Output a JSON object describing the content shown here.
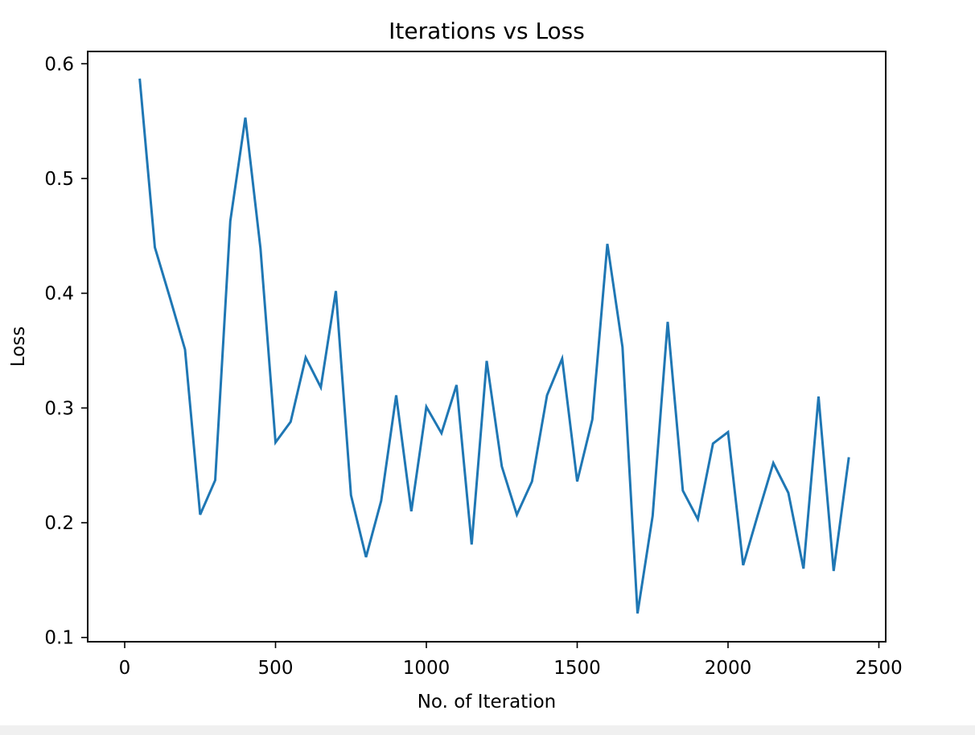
{
  "chart_data": {
    "type": "line",
    "title": "Iterations vs Loss",
    "xlabel": "No. of Iteration",
    "ylabel": "Loss",
    "xlim": [
      -120,
      2520
    ],
    "ylim": [
      0.097,
      0.61
    ],
    "xticks": [
      0,
      500,
      1000,
      1500,
      2000,
      2500
    ],
    "yticks": [
      0.1,
      0.2,
      0.3,
      0.4,
      0.5,
      0.6
    ],
    "xtick_labels": [
      "0",
      "500",
      "1000",
      "1500",
      "2000",
      "2500"
    ],
    "ytick_labels": [
      "0.1",
      "0.2",
      "0.3",
      "0.4",
      "0.5",
      "0.6"
    ],
    "grid": false,
    "series": [
      {
        "color": "#1f77b4",
        "x": [
          50,
          100,
          150,
          200,
          250,
          300,
          350,
          400,
          450,
          500,
          550,
          600,
          650,
          700,
          750,
          800,
          850,
          900,
          950,
          1000,
          1050,
          1100,
          1150,
          1200,
          1250,
          1300,
          1350,
          1400,
          1450,
          1500,
          1550,
          1600,
          1650,
          1700,
          1750,
          1800,
          1850,
          1900,
          1950,
          2000,
          2050,
          2100,
          2150,
          2200,
          2250,
          2300,
          2350,
          2400
        ],
        "y": [
          0.586,
          0.44,
          0.396,
          0.351,
          0.207,
          0.237,
          0.463,
          0.553,
          0.439,
          0.27,
          0.288,
          0.344,
          0.318,
          0.402,
          0.224,
          0.17,
          0.219,
          0.311,
          0.21,
          0.301,
          0.278,
          0.32,
          0.181,
          0.341,
          0.249,
          0.207,
          0.236,
          0.311,
          0.343,
          0.236,
          0.29,
          0.443,
          0.353,
          0.121,
          0.206,
          0.375,
          0.228,
          0.203,
          0.269,
          0.279,
          0.163,
          0.208,
          0.252,
          0.226,
          0.16,
          0.31,
          0.158,
          0.256
        ]
      }
    ]
  }
}
